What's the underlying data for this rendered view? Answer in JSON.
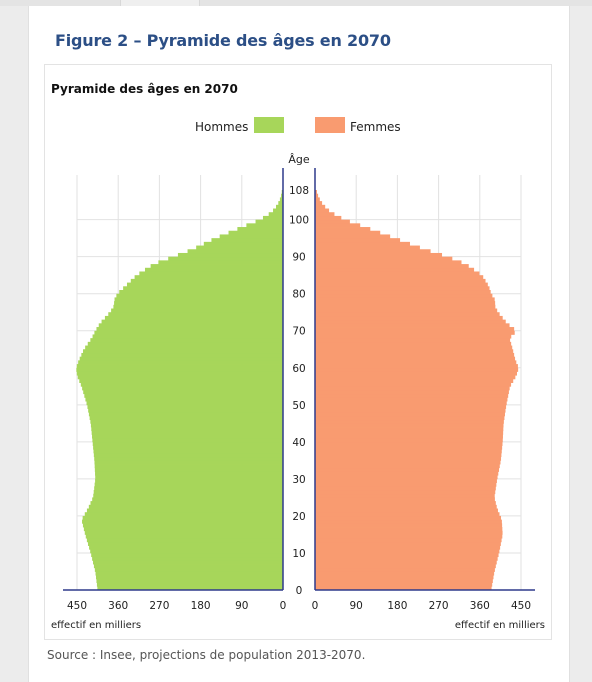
{
  "figure": {
    "title": "Figure 2 – Pyramide des âges en 2070",
    "source": "Source : Insee, projections de population 2013-2070."
  },
  "chart_data": {
    "type": "bar",
    "orientation": "horizontal-pyramid",
    "title": "Pyramide des âges en 2070",
    "ylabel": "Âge",
    "xlabel_left": "effectif en milliers",
    "xlabel_right": "effectif en milliers",
    "x_ticks_left": [
      "450",
      "360",
      "270",
      "180",
      "90",
      "0"
    ],
    "x_ticks_right": [
      "0",
      "90",
      "180",
      "270",
      "360",
      "450"
    ],
    "y_ticks": [
      "0",
      "10",
      "20",
      "30",
      "40",
      "50",
      "60",
      "70",
      "80",
      "90",
      "100",
      "108"
    ],
    "xlim": [
      0,
      450
    ],
    "ylim": [
      0,
      108
    ],
    "grid": true,
    "legend_position": "top",
    "series": [
      {
        "name": "Hommes",
        "color": "#a7d65a",
        "side": "left",
        "profile_ages": [
          0,
          5,
          10,
          15,
          19,
          22,
          25,
          30,
          35,
          40,
          45,
          50,
          55,
          58,
          60,
          62,
          65,
          68,
          70,
          72,
          75,
          77,
          78,
          80,
          82,
          85,
          88,
          90,
          92,
          95,
          98,
          100,
          102,
          104,
          106,
          108
        ],
        "profile_values": [
          405,
          410,
          420,
          432,
          440,
          426,
          415,
          410,
          412,
          416,
          420,
          428,
          440,
          450,
          452,
          446,
          435,
          418,
          410,
          400,
          378,
          368,
          370,
          362,
          345,
          320,
          283,
          240,
          198,
          148,
          90,
          50,
          25,
          12,
          5,
          2
        ]
      },
      {
        "name": "Femmes",
        "color": "#f99b70",
        "side": "right",
        "profile_ages": [
          0,
          5,
          10,
          15,
          19,
          22,
          25,
          30,
          35,
          40,
          45,
          50,
          55,
          58,
          60,
          62,
          65,
          68,
          70,
          72,
          75,
          77,
          78,
          80,
          82,
          85,
          88,
          90,
          92,
          95,
          98,
          100,
          102,
          104,
          106,
          108
        ],
        "profile_values": [
          385,
          392,
          402,
          410,
          408,
          398,
          392,
          398,
          406,
          410,
          412,
          418,
          426,
          440,
          445,
          438,
          432,
          425,
          440,
          420,
          400,
          392,
          395,
          385,
          380,
          365,
          330,
          290,
          240,
          175,
          110,
          65,
          35,
          18,
          8,
          3
        ]
      }
    ]
  }
}
